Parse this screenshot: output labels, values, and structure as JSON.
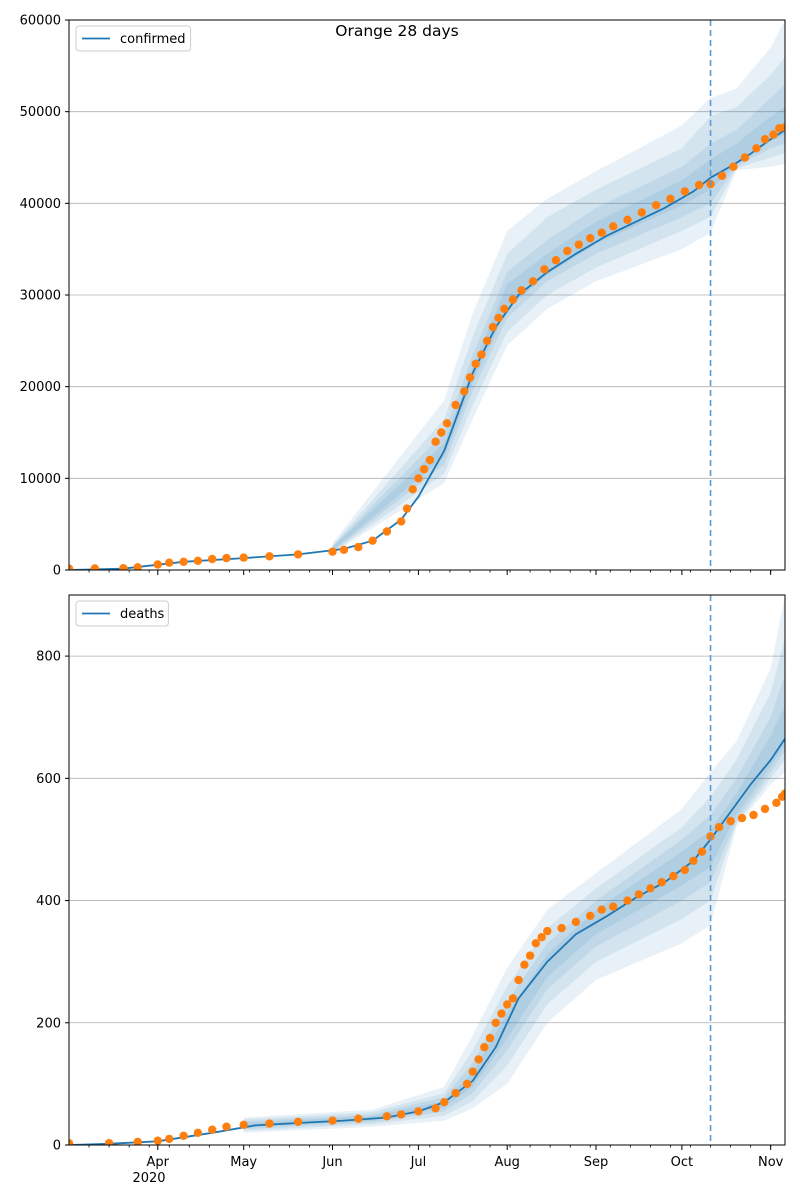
{
  "figure": {
    "title": "Orange 28 days",
    "year_label": "2020"
  },
  "colors": {
    "model": "#1f77b4",
    "observed": "#ff7f0e",
    "grid": "#b0b0b0",
    "vline": "#5b9bd5"
  },
  "chart_data": [
    {
      "type": "line",
      "legend": "confirmed",
      "legend_position": "upper-left",
      "grid": "horizontal",
      "xlim": [
        "2020-03-01",
        "2020-11-06"
      ],
      "ylim": [
        0,
        60000
      ],
      "yticks": [
        0,
        10000,
        20000,
        30000,
        40000,
        50000,
        60000
      ],
      "forecast_start": "2020-10-11",
      "fit_end": "2020-10-11",
      "model_curve": {
        "x": [
          "2020-03-01",
          "2020-03-20",
          "2020-04-10",
          "2020-05-01",
          "2020-05-20",
          "2020-06-05",
          "2020-06-15",
          "2020-06-25",
          "2020-07-01",
          "2020-07-10",
          "2020-07-20",
          "2020-07-28",
          "2020-08-05",
          "2020-08-15",
          "2020-08-25",
          "2020-09-05",
          "2020-09-15",
          "2020-09-25",
          "2020-10-05",
          "2020-10-11",
          "2020-10-15",
          "2020-10-20",
          "2020-10-25",
          "2020-11-01",
          "2020-11-06"
        ],
        "y": [
          0,
          150,
          900,
          1300,
          1700,
          2300,
          3200,
          5500,
          8000,
          13000,
          21500,
          26500,
          30000,
          32500,
          34500,
          36500,
          38000,
          39500,
          41300,
          42800,
          43500,
          44400,
          45400,
          47000,
          48000
        ]
      },
      "uncertainty_bands": [
        {
          "x": [
            "2020-06-01",
            "2020-07-10",
            "2020-07-20",
            "2020-08-01",
            "2020-08-15",
            "2020-09-01",
            "2020-10-01",
            "2020-10-11",
            "2020-10-20",
            "2020-11-01",
            "2020-11-06"
          ],
          "lower": [
            1800,
            9500,
            16500,
            24500,
            28500,
            31500,
            35000,
            36800,
            43600,
            44000,
            44300
          ],
          "upper": [
            2900,
            18500,
            28000,
            37000,
            40500,
            43500,
            48500,
            51500,
            52500,
            57000,
            60000
          ]
        },
        {
          "x": [
            "2020-06-01",
            "2020-07-10",
            "2020-07-20",
            "2020-08-01",
            "2020-08-15",
            "2020-09-01",
            "2020-10-01",
            "2020-10-11",
            "2020-10-20",
            "2020-11-01",
            "2020-11-06"
          ],
          "lower": [
            1900,
            10500,
            18000,
            26000,
            30000,
            33000,
            37000,
            38500,
            43800,
            45000,
            45500
          ],
          "upper": [
            2700,
            16500,
            25500,
            34500,
            38500,
            41500,
            46000,
            49500,
            50500,
            54000,
            56000
          ]
        },
        {
          "x": [
            "2020-06-01",
            "2020-07-10",
            "2020-07-20",
            "2020-08-01",
            "2020-08-15",
            "2020-09-01",
            "2020-10-01",
            "2020-10-11",
            "2020-10-20",
            "2020-11-01",
            "2020-11-06"
          ],
          "lower": [
            2000,
            11500,
            19500,
            27500,
            31500,
            34500,
            38500,
            40000,
            44000,
            46000,
            46500
          ],
          "upper": [
            2600,
            15000,
            23500,
            32500,
            36000,
            39500,
            44000,
            46500,
            48000,
            51500,
            53000
          ]
        },
        {
          "x": [
            "2020-06-01",
            "2020-07-10",
            "2020-07-20",
            "2020-08-01",
            "2020-08-15",
            "2020-09-01",
            "2020-10-01",
            "2020-10-11",
            "2020-10-20",
            "2020-11-01",
            "2020-11-06"
          ],
          "lower": [
            2100,
            12300,
            20500,
            28500,
            32200,
            35600,
            39800,
            41500,
            44200,
            46800,
            47500
          ],
          "upper": [
            2500,
            13800,
            22200,
            31200,
            34500,
            38000,
            42500,
            44800,
            46500,
            49500,
            50500
          ]
        }
      ],
      "observed_points": {
        "x": [
          "2020-03-01",
          "2020-03-10",
          "2020-03-20",
          "2020-03-25",
          "2020-04-01",
          "2020-04-05",
          "2020-04-10",
          "2020-04-15",
          "2020-04-20",
          "2020-04-25",
          "2020-05-01",
          "2020-05-10",
          "2020-05-20",
          "2020-06-01",
          "2020-06-05",
          "2020-06-10",
          "2020-06-15",
          "2020-06-20",
          "2020-06-25",
          "2020-06-27",
          "2020-06-29",
          "2020-07-01",
          "2020-07-03",
          "2020-07-05",
          "2020-07-07",
          "2020-07-09",
          "2020-07-11",
          "2020-07-14",
          "2020-07-17",
          "2020-07-19",
          "2020-07-21",
          "2020-07-23",
          "2020-07-25",
          "2020-07-27",
          "2020-07-29",
          "2020-07-31",
          "2020-08-03",
          "2020-08-06",
          "2020-08-10",
          "2020-08-14",
          "2020-08-18",
          "2020-08-22",
          "2020-08-26",
          "2020-08-30",
          "2020-09-03",
          "2020-09-07",
          "2020-09-12",
          "2020-09-17",
          "2020-09-22",
          "2020-09-27",
          "2020-10-02",
          "2020-10-07",
          "2020-10-11",
          "2020-10-15",
          "2020-10-19",
          "2020-10-23",
          "2020-10-27",
          "2020-10-30",
          "2020-11-02",
          "2020-11-04",
          "2020-11-06"
        ],
        "y": [
          150,
          160,
          200,
          300,
          600,
          800,
          900,
          1000,
          1200,
          1300,
          1350,
          1500,
          1700,
          2000,
          2200,
          2500,
          3200,
          4200,
          5300,
          6700,
          8800,
          10000,
          11000,
          12000,
          14000,
          15000,
          16000,
          18000,
          19500,
          21000,
          22500,
          23500,
          25000,
          26500,
          27500,
          28500,
          29500,
          30500,
          31500,
          32800,
          33800,
          34800,
          35500,
          36200,
          36800,
          37500,
          38200,
          39000,
          39800,
          40500,
          41300,
          42000,
          42100,
          43000,
          44000,
          45000,
          46000,
          47000,
          47500,
          48200,
          48300
        ]
      }
    },
    {
      "type": "line",
      "legend": "deaths",
      "legend_position": "upper-left",
      "grid": "horizontal",
      "xlim": [
        "2020-03-01",
        "2020-11-06"
      ],
      "ylim": [
        0,
        900
      ],
      "yticks": [
        0,
        200,
        400,
        600,
        800
      ],
      "xticks": [
        "Apr",
        "May",
        "Jun",
        "Jul",
        "Aug",
        "Sep",
        "Oct",
        "Nov"
      ],
      "xtick_dates": [
        "2020-04-01",
        "2020-05-01",
        "2020-06-01",
        "2020-07-01",
        "2020-08-01",
        "2020-09-01",
        "2020-10-01",
        "2020-11-01"
      ],
      "forecast_start": "2020-10-11",
      "fit_end": "2020-10-11",
      "model_curve": {
        "x": [
          "2020-03-01",
          "2020-03-15",
          "2020-04-01",
          "2020-04-20",
          "2020-05-05",
          "2020-05-20",
          "2020-06-05",
          "2020-06-20",
          "2020-07-01",
          "2020-07-10",
          "2020-07-20",
          "2020-07-28",
          "2020-08-05",
          "2020-08-15",
          "2020-08-25",
          "2020-09-05",
          "2020-09-15",
          "2020-09-25",
          "2020-10-05",
          "2020-10-11",
          "2020-10-18",
          "2020-10-25",
          "2020-11-01",
          "2020-11-06"
        ],
        "y": [
          0,
          2,
          6,
          20,
          32,
          36,
          40,
          45,
          55,
          70,
          105,
          160,
          240,
          300,
          345,
          375,
          405,
          430,
          465,
          500,
          545,
          590,
          630,
          665
        ]
      },
      "uncertainty_bands": [
        {
          "x": [
            "2020-05-01",
            "2020-06-15",
            "2020-07-10",
            "2020-07-20",
            "2020-08-01",
            "2020-08-15",
            "2020-09-01",
            "2020-10-01",
            "2020-10-11",
            "2020-10-20",
            "2020-11-01",
            "2020-11-06"
          ],
          "lower": [
            20,
            30,
            40,
            60,
            100,
            200,
            270,
            330,
            360,
            520,
            590,
            610
          ],
          "upper": [
            45,
            58,
            95,
            180,
            290,
            385,
            445,
            550,
            610,
            660,
            780,
            900
          ]
        },
        {
          "x": [
            "2020-05-01",
            "2020-06-15",
            "2020-07-10",
            "2020-07-20",
            "2020-08-01",
            "2020-08-15",
            "2020-09-01",
            "2020-10-01",
            "2020-10-11",
            "2020-10-20",
            "2020-11-01",
            "2020-11-06"
          ],
          "lower": [
            23,
            34,
            48,
            72,
            130,
            230,
            300,
            370,
            400,
            525,
            600,
            630
          ],
          "upper": [
            42,
            54,
            85,
            155,
            260,
            355,
            420,
            520,
            570,
            630,
            740,
            830
          ]
        },
        {
          "x": [
            "2020-05-01",
            "2020-06-15",
            "2020-07-10",
            "2020-07-20",
            "2020-08-01",
            "2020-08-15",
            "2020-09-01",
            "2020-10-01",
            "2020-10-11",
            "2020-10-20",
            "2020-11-01",
            "2020-11-06"
          ],
          "lower": [
            26,
            37,
            55,
            85,
            155,
            255,
            325,
            400,
            430,
            530,
            610,
            645
          ],
          "upper": [
            39,
            50,
            78,
            135,
            235,
            330,
            400,
            500,
            540,
            600,
            700,
            770
          ]
        },
        {
          "x": [
            "2020-05-01",
            "2020-06-15",
            "2020-07-10",
            "2020-07-20",
            "2020-08-01",
            "2020-08-15",
            "2020-09-01",
            "2020-10-01",
            "2020-10-11",
            "2020-10-20",
            "2020-11-01",
            "2020-11-06"
          ],
          "lower": [
            29,
            40,
            62,
            95,
            175,
            275,
            345,
            425,
            455,
            540,
            620,
            655
          ],
          "upper": [
            36,
            47,
            72,
            120,
            215,
            312,
            385,
            480,
            515,
            575,
            670,
            720
          ]
        }
      ],
      "observed_points": {
        "x": [
          "2020-03-01",
          "2020-03-15",
          "2020-03-25",
          "2020-04-01",
          "2020-04-05",
          "2020-04-10",
          "2020-04-15",
          "2020-04-20",
          "2020-04-25",
          "2020-05-01",
          "2020-05-10",
          "2020-05-20",
          "2020-06-01",
          "2020-06-10",
          "2020-06-20",
          "2020-06-25",
          "2020-07-01",
          "2020-07-07",
          "2020-07-10",
          "2020-07-14",
          "2020-07-18",
          "2020-07-20",
          "2020-07-22",
          "2020-07-24",
          "2020-07-26",
          "2020-07-28",
          "2020-07-30",
          "2020-08-01",
          "2020-08-03",
          "2020-08-05",
          "2020-08-07",
          "2020-08-09",
          "2020-08-11",
          "2020-08-13",
          "2020-08-15",
          "2020-08-20",
          "2020-08-25",
          "2020-08-30",
          "2020-09-03",
          "2020-09-07",
          "2020-09-12",
          "2020-09-16",
          "2020-09-20",
          "2020-09-24",
          "2020-09-28",
          "2020-10-02",
          "2020-10-05",
          "2020-10-08",
          "2020-10-11",
          "2020-10-14",
          "2020-10-18",
          "2020-10-22",
          "2020-10-26",
          "2020-10-30",
          "2020-11-03",
          "2020-11-05",
          "2020-11-06"
        ],
        "y": [
          3,
          3,
          5,
          7,
          10,
          15,
          20,
          25,
          30,
          33,
          35,
          38,
          40,
          43,
          47,
          50,
          55,
          60,
          70,
          85,
          100,
          120,
          140,
          160,
          175,
          200,
          215,
          230,
          240,
          270,
          295,
          310,
          330,
          340,
          350,
          355,
          365,
          375,
          385,
          390,
          400,
          410,
          420,
          430,
          440,
          450,
          465,
          480,
          505,
          520,
          530,
          535,
          540,
          550,
          560,
          570,
          575
        ]
      }
    }
  ]
}
